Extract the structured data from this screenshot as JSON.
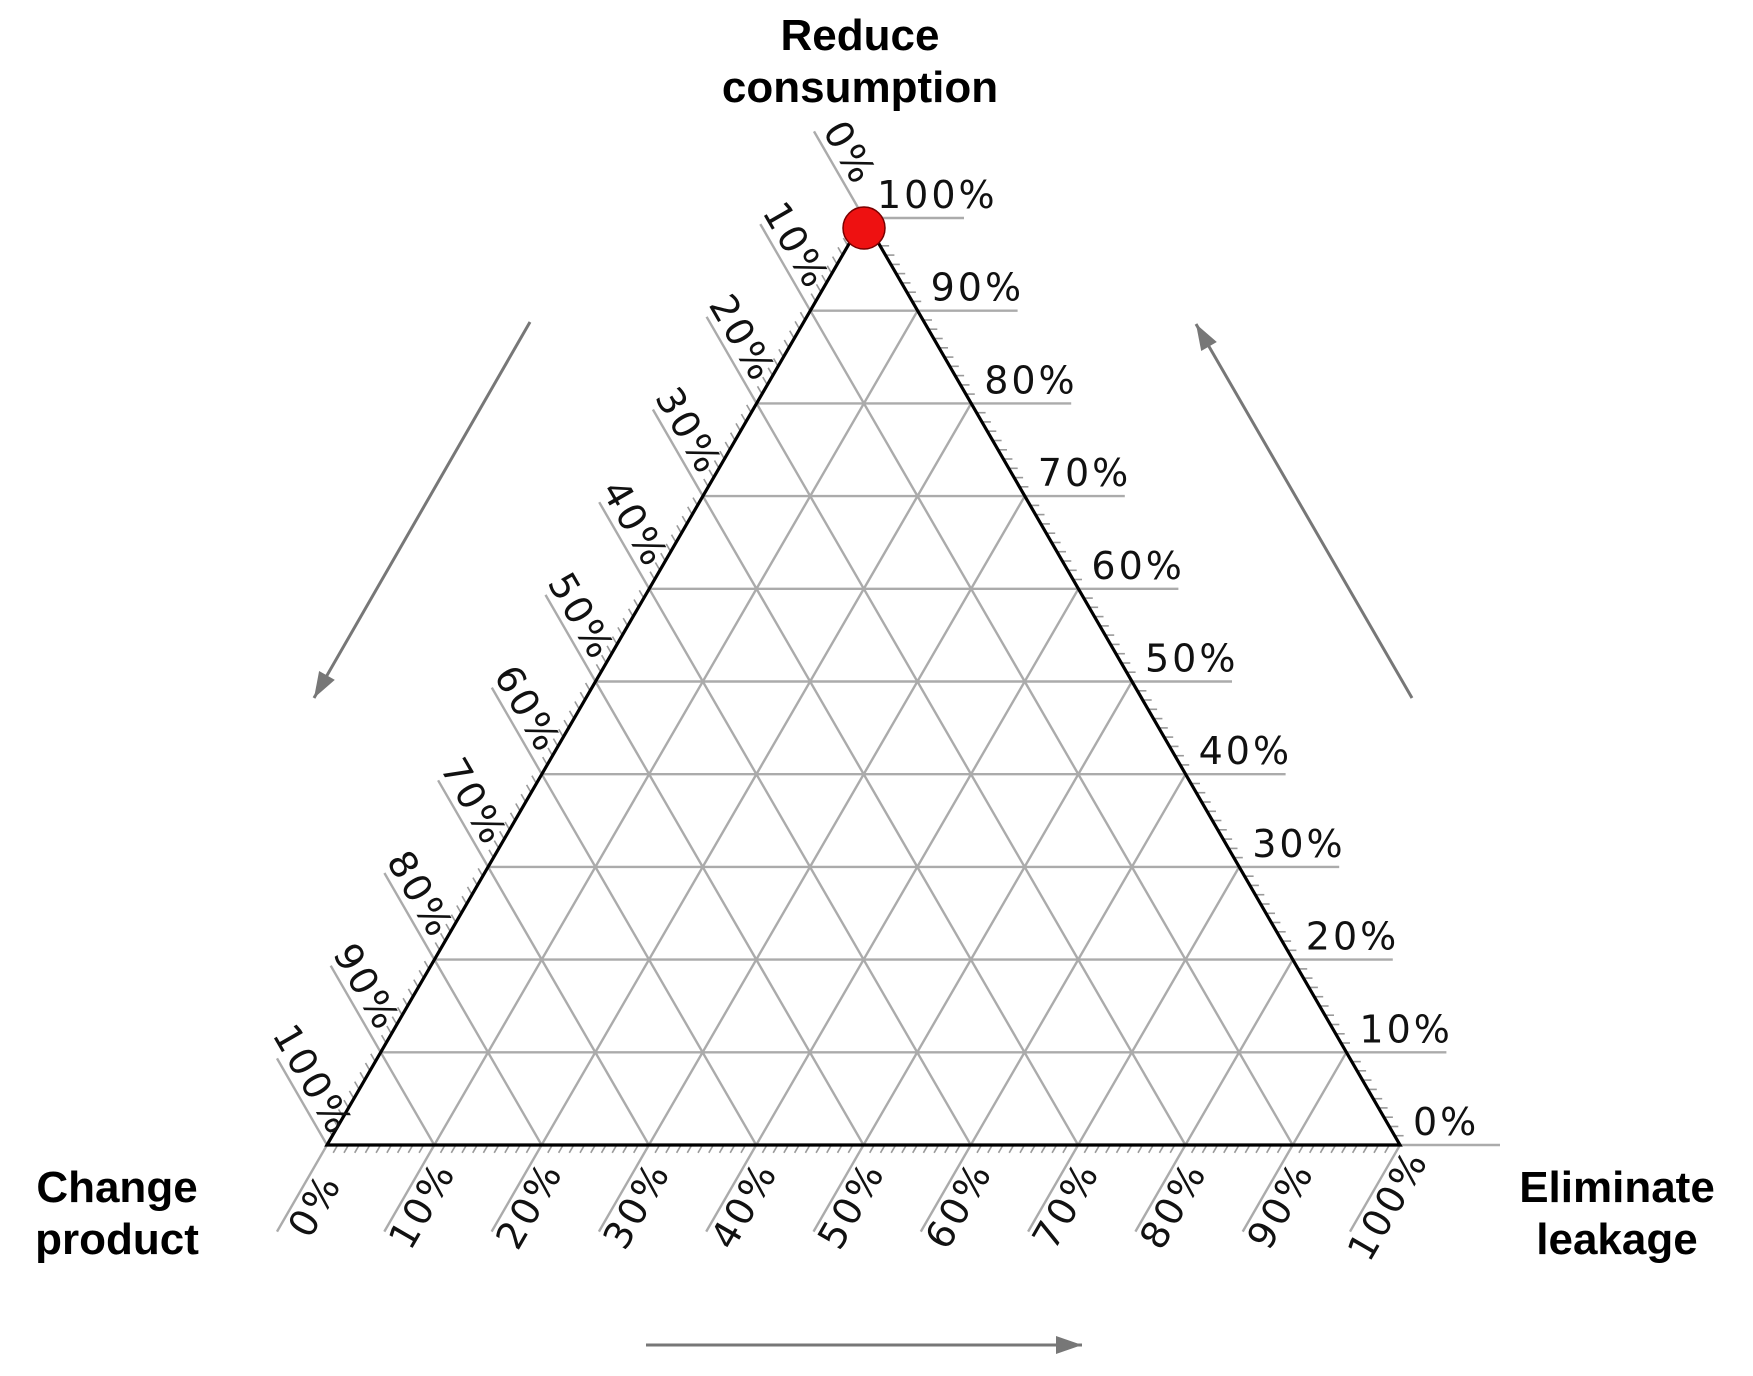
{
  "chart_data": {
    "type": "scatter",
    "subtype": "ternary",
    "vertex_labels": {
      "top": [
        "Reduce",
        "consumption"
      ],
      "left": [
        "Change",
        "product"
      ],
      "right": [
        "Eliminate",
        "leakage"
      ]
    },
    "axes": {
      "reduce_consumption": {
        "ticks": [
          "0%",
          "10%",
          "20%",
          "30%",
          "40%",
          "50%",
          "60%",
          "70%",
          "80%",
          "90%",
          "100%"
        ],
        "range": [
          0,
          100
        ],
        "direction": "increases toward top vertex"
      },
      "change_product": {
        "ticks": [
          "0%",
          "10%",
          "20%",
          "30%",
          "40%",
          "50%",
          "60%",
          "70%",
          "80%",
          "90%",
          "100%"
        ],
        "range": [
          0,
          100
        ],
        "direction": "increases toward bottom-left vertex"
      },
      "eliminate_leakage": {
        "ticks": [
          "0%",
          "10%",
          "20%",
          "30%",
          "40%",
          "50%",
          "60%",
          "70%",
          "80%",
          "90%",
          "100%"
        ],
        "range": [
          0,
          100
        ],
        "direction": "increases toward bottom-right vertex"
      }
    },
    "grid": true,
    "grid_step": 10,
    "points": [
      {
        "reduce_consumption": 100,
        "change_product": 0,
        "eliminate_leakage": 0,
        "color": "#ee1111"
      }
    ]
  }
}
